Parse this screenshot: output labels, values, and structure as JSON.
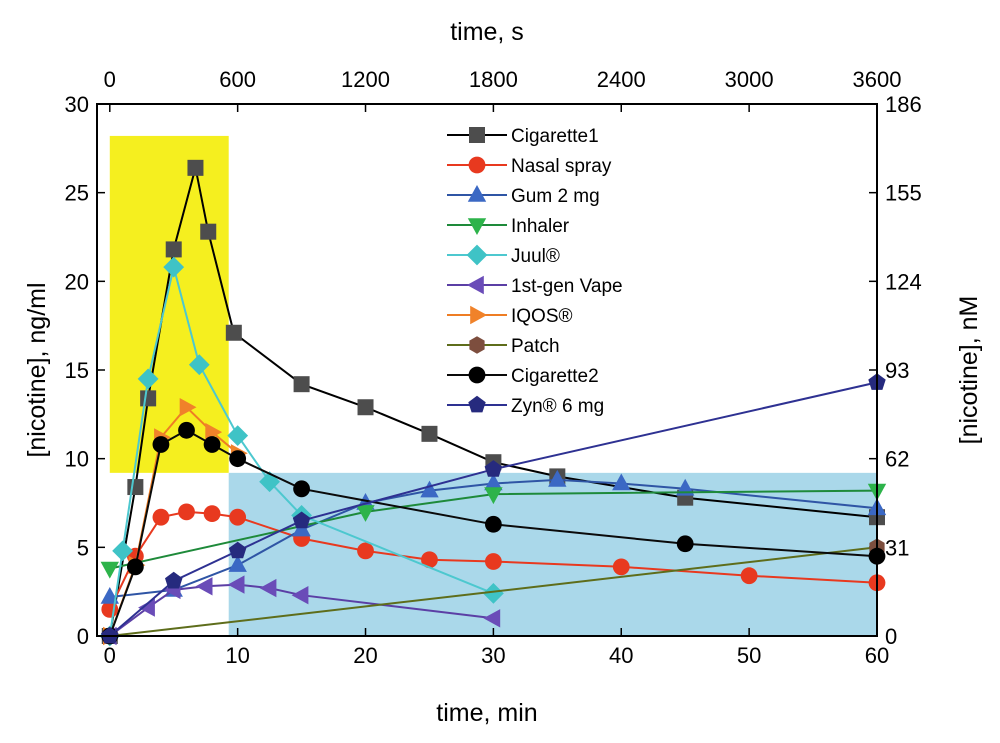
{
  "chart_data": {
    "type": "line",
    "xlabel": "time, min",
    "x2label": "time, s",
    "ylabel": "[nicotine], ng/ml",
    "y2label": "[nicotine], nM",
    "xlim": [
      -1,
      60
    ],
    "ylim": [
      0,
      30
    ],
    "x2lim": [
      -60,
      3600
    ],
    "y2lim": [
      0,
      186
    ],
    "xticks": [
      0,
      10,
      20,
      30,
      40,
      50,
      60
    ],
    "yticks": [
      0,
      5,
      10,
      15,
      20,
      25,
      30
    ],
    "x2ticks": [
      0,
      600,
      1200,
      1800,
      2400,
      3000,
      3600
    ],
    "y2ticks": [
      0,
      31,
      62,
      93,
      124,
      155,
      186
    ],
    "regions": [
      {
        "name": "yellow-region",
        "x": [
          0,
          9.3
        ],
        "y": [
          9.2,
          28.2
        ],
        "color": "#f5ef1f"
      },
      {
        "name": "blue-region",
        "x": [
          9.3,
          60
        ],
        "y": [
          0,
          9.2
        ],
        "color": "#aad8ea"
      }
    ],
    "legend_position": "top-center",
    "series": [
      {
        "name": "Cigarette1",
        "marker": "square",
        "color": "#000000",
        "markerColor": "#4d4d4d",
        "x": [
          0,
          2,
          3,
          5,
          6.7,
          7.7,
          9.7,
          15,
          20,
          25,
          30,
          35,
          45,
          60
        ],
        "y": [
          0,
          8.4,
          13.4,
          21.8,
          26.4,
          22.8,
          17.1,
          14.2,
          12.9,
          11.4,
          9.8,
          9.0,
          7.8,
          6.7
        ]
      },
      {
        "name": "Nasal spray",
        "marker": "circle",
        "color": "#e8391f",
        "markerColor": "#e8391f",
        "x": [
          0,
          2,
          4,
          6,
          8,
          10,
          15,
          20,
          25,
          30,
          40,
          50,
          60
        ],
        "y": [
          1.5,
          4.5,
          6.7,
          7.0,
          6.9,
          6.7,
          5.5,
          4.8,
          4.3,
          4.2,
          3.9,
          3.4,
          3.0
        ]
      },
      {
        "name": "Gum 2 mg",
        "marker": "triangle-up",
        "color": "#2f55a5",
        "markerColor": "#3b68c4",
        "x": [
          0,
          5,
          10,
          15,
          20,
          25,
          30,
          35,
          40,
          45,
          60
        ],
        "y": [
          2.2,
          2.6,
          4.0,
          6.0,
          7.5,
          8.2,
          8.6,
          8.8,
          8.6,
          8.3,
          7.2
        ]
      },
      {
        "name": "Inhaler",
        "marker": "triangle-down",
        "color": "#1e8a3a",
        "markerColor": "#2db34a",
        "x": [
          0,
          20,
          30,
          60
        ],
        "y": [
          3.8,
          7.0,
          8.0,
          8.2
        ]
      },
      {
        "name": "Juul®",
        "marker": "diamond",
        "color": "#4dc8cf",
        "markerColor": "#3fc3c6",
        "x": [
          0,
          1,
          3,
          5,
          7,
          10,
          12.5,
          15,
          30
        ],
        "y": [
          0,
          4.8,
          14.5,
          20.8,
          15.3,
          11.3,
          8.7,
          6.8,
          2.4
        ]
      },
      {
        "name": "1st-gen Vape",
        "marker": "triangle-left",
        "color": "#5b3fa5",
        "markerColor": "#6a4cb8",
        "x": [
          0,
          3,
          5,
          7.5,
          10,
          12.5,
          15,
          30
        ],
        "y": [
          0,
          1.6,
          2.6,
          2.8,
          2.9,
          2.7,
          2.3,
          1.0
        ]
      },
      {
        "name": "IQOS®",
        "marker": "triangle-right",
        "color": "#ee7d24",
        "markerColor": "#f0822a",
        "x": [
          0,
          2,
          4,
          6,
          8,
          10
        ],
        "y": [
          0,
          4.0,
          11.2,
          12.9,
          11.5,
          10.3
        ]
      },
      {
        "name": "Patch",
        "marker": "hexagon",
        "color": "#5e6d1b",
        "markerColor": "#7d4e3e",
        "x": [
          0,
          60
        ],
        "y": [
          0,
          5.0
        ]
      },
      {
        "name": "Cigarette2",
        "marker": "circle",
        "color": "#0a0a0a",
        "markerColor": "#000000",
        "x": [
          0,
          2,
          4,
          6,
          8,
          10,
          15,
          30,
          45,
          60
        ],
        "y": [
          0,
          3.9,
          10.8,
          11.6,
          10.8,
          10.0,
          8.3,
          6.3,
          5.2,
          4.5
        ]
      },
      {
        "name": "Zyn® 6 mg",
        "marker": "pentagon",
        "color": "#2e3192",
        "markerColor": "#262a7e",
        "x": [
          0,
          5,
          10,
          15,
          30,
          60
        ],
        "y": [
          0,
          3.1,
          4.8,
          6.5,
          9.4,
          14.3
        ]
      }
    ]
  }
}
